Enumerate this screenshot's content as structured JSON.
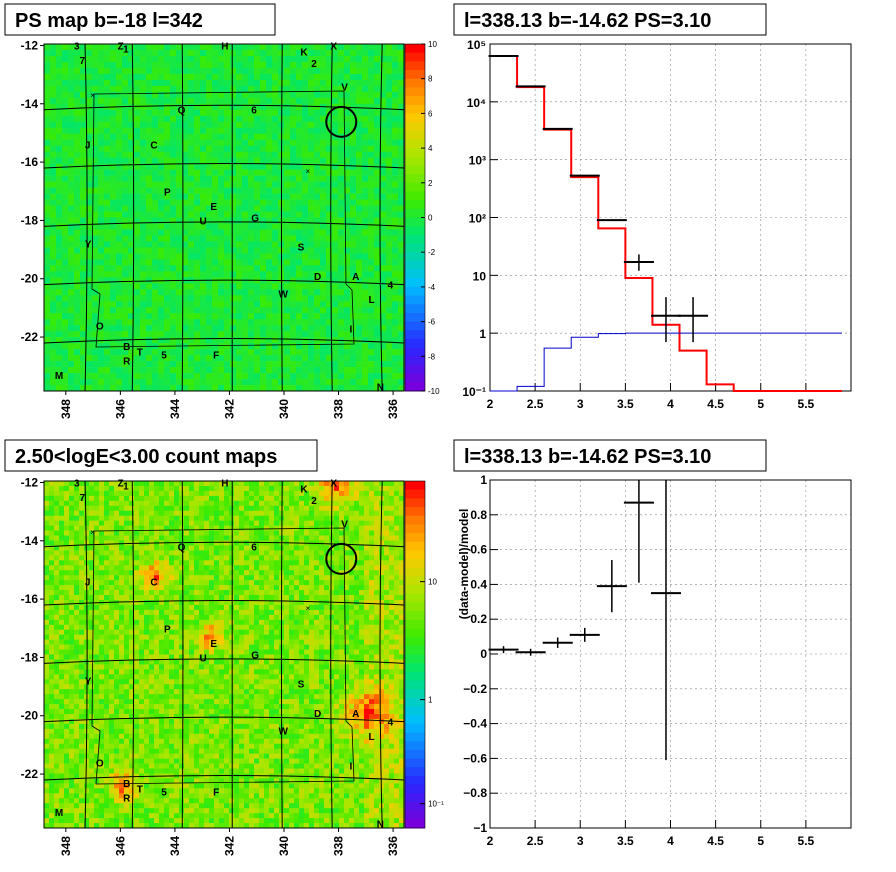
{
  "panels": {
    "tl": {
      "title": "PS map b=-18 l=342"
    },
    "tr": {
      "title": "l=338.13 b=-14.62 PS=3.10"
    },
    "bl": {
      "title": "2.50<logE<3.00 count maps"
    },
    "br": {
      "title": "l=338.13 b=-14.62 PS=3.10"
    }
  },
  "chart_data": [
    {
      "type": "heatmap",
      "title": "PS map b=-18 l=342",
      "xticks": [
        "348",
        "346",
        "344",
        "342",
        "340",
        "338",
        "336"
      ],
      "yticks": [
        "-12",
        "-14",
        "-16",
        "-18",
        "-20",
        "-22"
      ],
      "colorbar": {
        "ticks": [
          "10",
          "8",
          "6",
          "4",
          "2",
          "0",
          "-2",
          "-4",
          "-6",
          "-8",
          "-10"
        ],
        "range": [
          -10,
          10
        ]
      },
      "grid": true,
      "source_labels": [
        {
          "t": "3",
          "l": 347.7,
          "b": -12.0
        },
        {
          "t": "Z",
          "l": 346.1,
          "b": -12.0
        },
        {
          "t": "1",
          "l": 345.9,
          "b": -12.1
        },
        {
          "t": "H",
          "l": 342.3,
          "b": -12.0
        },
        {
          "t": "K",
          "l": 339.4,
          "b": -12.2
        },
        {
          "t": "X",
          "l": 338.3,
          "b": -12.0
        },
        {
          "t": "7",
          "l": 347.5,
          "b": -12.5
        },
        {
          "t": "2",
          "l": 339.0,
          "b": -12.6
        },
        {
          "t": "V",
          "l": 337.9,
          "b": -13.4
        },
        {
          "t": "Q",
          "l": 343.9,
          "b": -14.2
        },
        {
          "t": "6",
          "l": 341.2,
          "b": -14.2
        },
        {
          "t": "J",
          "l": 347.3,
          "b": -15.4
        },
        {
          "t": "C",
          "l": 344.9,
          "b": -15.4
        },
        {
          "t": "P",
          "l": 344.4,
          "b": -17.0
        },
        {
          "t": "E",
          "l": 342.7,
          "b": -17.5
        },
        {
          "t": "U",
          "l": 343.1,
          "b": -18.0
        },
        {
          "t": "G",
          "l": 341.2,
          "b": -17.9
        },
        {
          "t": "Y",
          "l": 347.3,
          "b": -18.8
        },
        {
          "t": "S",
          "l": 339.5,
          "b": -18.9
        },
        {
          "t": "D",
          "l": 338.9,
          "b": -19.9
        },
        {
          "t": "A",
          "l": 337.5,
          "b": -19.9
        },
        {
          "t": "W",
          "l": 340.2,
          "b": -20.5
        },
        {
          "t": "4",
          "l": 336.2,
          "b": -20.2
        },
        {
          "t": "L",
          "l": 336.9,
          "b": -20.7
        },
        {
          "t": "O",
          "l": 346.9,
          "b": -21.6
        },
        {
          "t": "I",
          "l": 337.6,
          "b": -21.7
        },
        {
          "t": "B",
          "l": 345.9,
          "b": -22.3
        },
        {
          "t": "T",
          "l": 345.4,
          "b": -22.5
        },
        {
          "t": "R",
          "l": 345.9,
          "b": -22.8
        },
        {
          "t": "5",
          "l": 344.5,
          "b": -22.6
        },
        {
          "t": "F",
          "l": 342.6,
          "b": -22.6
        },
        {
          "t": "M",
          "l": 348.4,
          "b": -23.3
        },
        {
          "t": "N",
          "l": 336.6,
          "b": -23.7
        }
      ]
    },
    {
      "type": "line",
      "title": "l=338.13 b=-14.62 PS=3.10",
      "xlim": [
        2,
        6
      ],
      "ylim": [
        0.1,
        100000
      ],
      "yscale": "log",
      "xticks": [
        "2",
        "2.5",
        "3",
        "3.5",
        "4",
        "4.5",
        "5",
        "5.5"
      ],
      "yticks": [
        "10⁻¹",
        "1",
        "10",
        "10²",
        "10³",
        "10⁴",
        "10⁵"
      ],
      "bin_edges": [
        2.0,
        2.3,
        2.6,
        2.9,
        3.2,
        3.5,
        3.8,
        4.1,
        4.4,
        4.7,
        5.0,
        5.3,
        5.6,
        5.9
      ],
      "series": [
        {
          "color": "#ff0000",
          "values": [
            62000,
            18000,
            3300,
            500,
            65,
            9,
            1.4,
            0.5,
            0.13,
            0.1,
            0.1,
            0.1,
            0.1
          ]
        },
        {
          "color": "#0000cc",
          "values": [
            0.1,
            0.12,
            0.55,
            0.85,
            0.98,
            1,
            1,
            1,
            1,
            1,
            1,
            1,
            1
          ]
        },
        {
          "color": "#000000",
          "points": [
            {
              "x": 2.15,
              "y": 62000
            },
            {
              "x": 2.45,
              "y": 18500
            },
            {
              "x": 2.75,
              "y": 3400
            },
            {
              "x": 3.05,
              "y": 530
            },
            {
              "x": 3.35,
              "y": 90
            },
            {
              "x": 3.65,
              "y": 17,
              "lo": 12,
              "hi": 23
            },
            {
              "x": 3.95,
              "y": 2,
              "lo": 0.7,
              "hi": 4.2
            },
            {
              "x": 4.25,
              "y": 2,
              "lo": 0.7,
              "hi": 4.2
            }
          ]
        }
      ]
    },
    {
      "type": "heatmap",
      "title": "2.50<logE<3.00 count maps",
      "xticks": [
        "348",
        "346",
        "344",
        "342",
        "340",
        "338",
        "336"
      ],
      "yticks": [
        "-12",
        "-14",
        "-16",
        "-18",
        "-20",
        "-22"
      ],
      "colorbar": {
        "ticks": [
          "10",
          "1",
          "10⁻¹"
        ],
        "scale": "log"
      },
      "grid": true
    },
    {
      "type": "scatter",
      "title": "l=338.13 b=-14.62 PS=3.10",
      "xlabel": "",
      "ylabel": "(data-model)/model",
      "xlim": [
        2,
        6
      ],
      "ylim": [
        -1,
        1
      ],
      "xticks": [
        "2",
        "2.5",
        "3",
        "3.5",
        "4",
        "4.5",
        "5",
        "5.5"
      ],
      "yticks": [
        "−1",
        "−0.8",
        "−0.6",
        "−0.4",
        "−0.2",
        "0",
        "0.2",
        "0.4",
        "0.6",
        "0.8",
        "1"
      ],
      "points": [
        {
          "x": 2.15,
          "y": 0.025,
          "lo": 0.005,
          "hi": 0.045
        },
        {
          "x": 2.45,
          "y": 0.01,
          "lo": -0.01,
          "hi": 0.03
        },
        {
          "x": 2.75,
          "y": 0.065,
          "lo": 0.035,
          "hi": 0.095
        },
        {
          "x": 3.05,
          "y": 0.11,
          "lo": 0.07,
          "hi": 0.15
        },
        {
          "x": 3.35,
          "y": 0.39,
          "lo": 0.24,
          "hi": 0.54
        },
        {
          "x": 3.65,
          "y": 0.87,
          "lo": 0.41,
          "hi": 1.0
        },
        {
          "x": 3.95,
          "y": 0.35,
          "lo": -0.61,
          "hi": 1.0
        }
      ]
    }
  ]
}
